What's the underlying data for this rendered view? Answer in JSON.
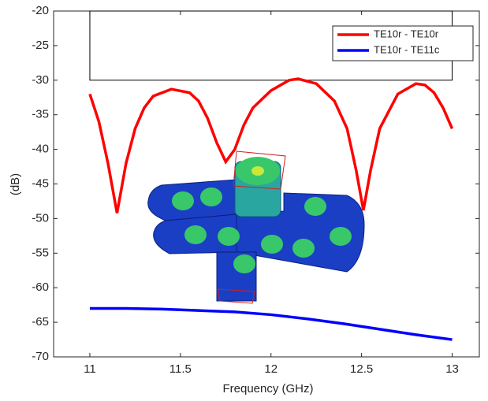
{
  "chart_data": {
    "type": "line",
    "xlabel": "Frequency (GHz)",
    "ylabel": "(dB)",
    "xlim": [
      10.8,
      13.15
    ],
    "ylim": [
      -70,
      -20
    ],
    "xticks": [
      11,
      11.5,
      12,
      12.5,
      13
    ],
    "yticks": [
      -70,
      -65,
      -60,
      -55,
      -50,
      -45,
      -40,
      -35,
      -30,
      -25,
      -20
    ],
    "grid": false,
    "legend": "upper right",
    "mask": {
      "x": [
        11,
        13
      ],
      "y": [
        -30,
        -20
      ],
      "color": "#000000"
    },
    "series": [
      {
        "name": "TE10r - TE10r",
        "color": "#ff0000",
        "x": [
          11,
          11.05,
          11.1,
          11.15,
          11.2,
          11.25,
          11.3,
          11.35,
          11.45,
          11.55,
          11.6,
          11.65,
          11.7,
          11.75,
          11.8,
          11.85,
          11.9,
          12,
          12.1,
          12.15,
          12.25,
          12.35,
          12.42,
          12.47,
          12.51,
          12.55,
          12.6,
          12.7,
          12.8,
          12.85,
          12.9,
          12.95,
          13
        ],
        "values": [
          -32,
          -36,
          -42,
          -49.2,
          -42,
          -37,
          -34,
          -32.3,
          -31.3,
          -31.8,
          -33,
          -35.5,
          -39,
          -41.8,
          -40,
          -36.5,
          -34,
          -31.5,
          -30,
          -29.8,
          -30.5,
          -33,
          -37,
          -43,
          -48.8,
          -43,
          -37,
          -32,
          -30.5,
          -30.7,
          -31.8,
          -34,
          -37
        ]
      },
      {
        "name": "TE10r - TE11c",
        "color": "#0000ff",
        "x": [
          11,
          11.2,
          11.4,
          11.6,
          11.8,
          12,
          12.2,
          12.4,
          12.6,
          12.8,
          13
        ],
        "values": [
          -63,
          -63,
          -63.1,
          -63.3,
          -63.5,
          -63.9,
          -64.5,
          -65.2,
          -66,
          -66.8,
          -67.5
        ]
      }
    ]
  }
}
